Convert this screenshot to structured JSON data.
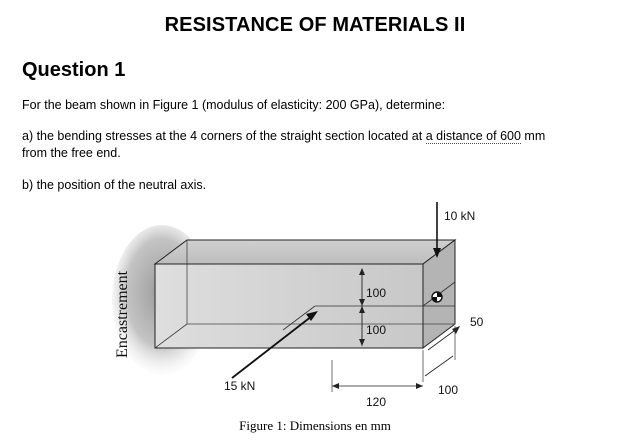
{
  "document": {
    "title": "RESISTANCE OF MATERIALS II",
    "question_heading": "Question 1",
    "intro": "For the beam shown in Figure 1 (modulus of elasticity: 200 GPa), determine:",
    "item_a_prefix": "a) the bending stresses at the 4 corners of the straight section located at ",
    "item_a_link": "a distance of 600",
    "item_a_suffix": " mm",
    "item_a_line2": "from the free end.",
    "item_b": "b) the position of the neutral axis."
  },
  "figure": {
    "caption": "Figure 1: Dimensions en mm",
    "support_label": "Encastrement",
    "load_vertical": "10 kN",
    "load_inclined": "15 kN",
    "dim_height_upper": "100",
    "dim_height_lower": "100",
    "dim_depth": "50",
    "dim_width": "100",
    "dim_offset": "120"
  }
}
